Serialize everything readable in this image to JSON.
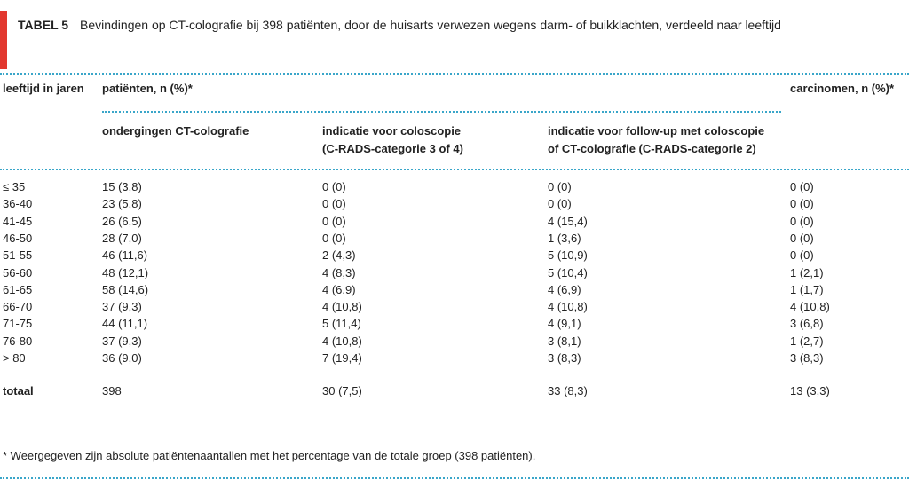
{
  "title": {
    "label": "TABEL 5",
    "text": "Bevindingen op CT-colografie bij 398 patiënten, door de huisarts verwezen wegens darm- of buikklachten, verdeeld naar leeftijd"
  },
  "table": {
    "columns": [
      "leeftijd in jaren",
      "patiënten, n (%)*",
      "carcinomen, n (%)*"
    ],
    "subcolumns": [
      [
        "ondergingen CT-colografie"
      ],
      [
        "indicatie voor coloscopie",
        "(C-RADS-categorie 3 of 4)"
      ],
      [
        "indicatie voor follow-up met coloscopie",
        "of CT-colografie (C-RADS-categorie 2)"
      ]
    ],
    "rows": [
      [
        "≤ 35",
        "15 (3,8)",
        "0 (0)",
        "0 (0)",
        "0 (0)"
      ],
      [
        "36-40",
        "23 (5,8)",
        "0 (0)",
        "0 (0)",
        "0 (0)"
      ],
      [
        "41-45",
        "26 (6,5)",
        "0 (0)",
        "4 (15,4)",
        "0 (0)"
      ],
      [
        "46-50",
        "28 (7,0)",
        "0 (0)",
        "1 (3,6)",
        "0 (0)"
      ],
      [
        "51-55",
        "46 (11,6)",
        "2 (4,3)",
        "5 (10,9)",
        "0 (0)"
      ],
      [
        "56-60",
        "48 (12,1)",
        "4 (8,3)",
        "5 (10,4)",
        "1 (2,1)"
      ],
      [
        "61-65",
        "58 (14,6)",
        "4 (6,9)",
        "4 (6,9)",
        "1 (1,7)"
      ],
      [
        "66-70",
        "37 (9,3)",
        "4 (10,8)",
        "4 (10,8)",
        "4 (10,8)"
      ],
      [
        "71-75",
        "44 (11,1)",
        "5 (11,4)",
        "4 (9,1)",
        "3 (6,8)"
      ],
      [
        "76-80",
        "37 (9,3)",
        "4 (10,8)",
        "3 (8,1)",
        "1 (2,7)"
      ],
      [
        "> 80",
        "36 (9,0)",
        "7 (19,4)",
        "3 (8,3)",
        "3 (8,3)"
      ]
    ],
    "total": [
      "totaal",
      "398",
      "30 (7,5)",
      "33 (8,3)",
      "13 (3,3)"
    ]
  },
  "footnote": "* Weergegeven zijn absolute patiëntenaantallen met het percentage van de totale groep (398 patiënten)."
}
